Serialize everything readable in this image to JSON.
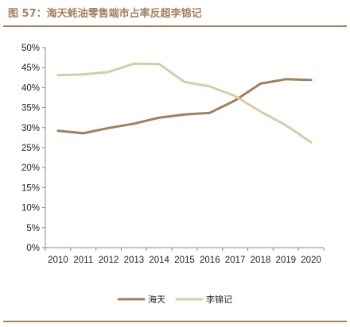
{
  "figure": {
    "title": "图 57：海天蚝油零售端市占率反超李锦记"
  },
  "chart_data": {
    "type": "line",
    "title": "",
    "xlabel": "",
    "ylabel": "",
    "x": [
      "2010",
      "2011",
      "2012",
      "2013",
      "2014",
      "2015",
      "2016",
      "2017",
      "2018",
      "2019",
      "2020"
    ],
    "ylim": [
      0,
      50
    ],
    "yticks": [
      "0%",
      "5%",
      "10%",
      "15%",
      "20%",
      "25%",
      "30%",
      "35%",
      "40%",
      "45%",
      "50%"
    ],
    "grid": false,
    "legend_position": "bottom-center",
    "series": [
      {
        "name": "海天",
        "color": "#a0805a",
        "values": [
          29.2,
          28.6,
          29.9,
          31.0,
          32.5,
          33.3,
          33.7,
          36.8,
          41.0,
          42.1,
          41.9
        ]
      },
      {
        "name": "李锦记",
        "color": "#d9cba6",
        "values": [
          43.1,
          43.3,
          43.9,
          46.0,
          45.9,
          41.4,
          40.3,
          37.9,
          34.0,
          30.6,
          26.3
        ]
      }
    ]
  }
}
